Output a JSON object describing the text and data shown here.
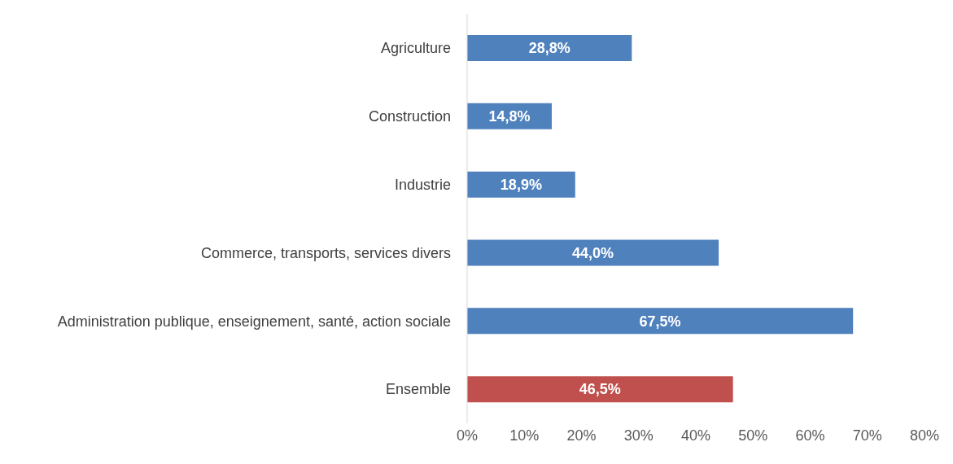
{
  "chart_data": {
    "type": "bar",
    "orientation": "horizontal",
    "categories": [
      "Agriculture",
      "Construction",
      "Industrie",
      "Commerce, transports, services divers",
      "Administration publique, enseignement, santé, action sociale",
      "Ensemble"
    ],
    "values": [
      28.8,
      14.8,
      18.9,
      44.0,
      67.5,
      46.5
    ],
    "colors": [
      "#4f81bd",
      "#4f81bd",
      "#4f81bd",
      "#4f81bd",
      "#4f81bd",
      "#c0504d"
    ],
    "value_labels": [
      "28,8%",
      "14,8%",
      "18,9%",
      "44,0%",
      "67,5%",
      "46,5%"
    ],
    "xlim": [
      0,
      80
    ],
    "xticks": [
      {
        "value": 0,
        "label": "0%"
      },
      {
        "value": 10,
        "label": "10%"
      },
      {
        "value": 20,
        "label": "20%"
      },
      {
        "value": 30,
        "label": "30%"
      },
      {
        "value": 40,
        "label": "40%"
      },
      {
        "value": 50,
        "label": "50%"
      },
      {
        "value": 60,
        "label": "60%"
      },
      {
        "value": 70,
        "label": "70%"
      },
      {
        "value": 80,
        "label": "80%"
      }
    ],
    "grid": false
  }
}
